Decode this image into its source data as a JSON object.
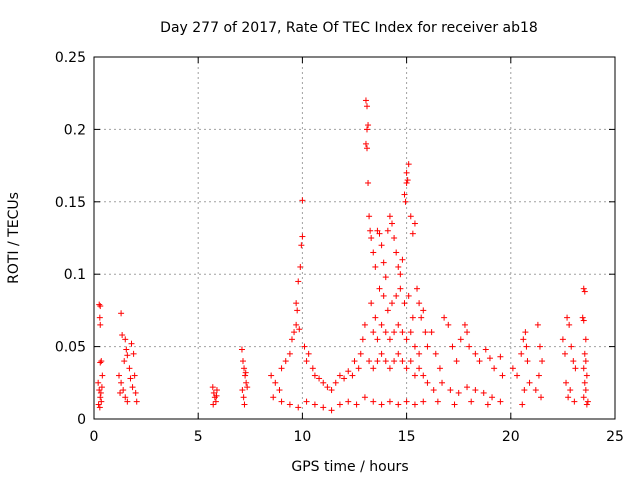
{
  "chart_data": {
    "type": "scatter",
    "title": "Day 277 of 2017, Rate Of TEC Index for receiver ab18",
    "xlabel": "GPS time / hours",
    "ylabel": "ROTI / TECUs",
    "xlim": [
      0,
      25
    ],
    "ylim": [
      0,
      0.25
    ],
    "x_ticks": [
      0,
      5,
      10,
      15,
      20,
      25
    ],
    "x_tick_labels": [
      "0",
      "5",
      "10",
      "15",
      "20",
      "25"
    ],
    "y_ticks": [
      0,
      0.05,
      0.1,
      0.15,
      0.2,
      0.25
    ],
    "y_tick_labels": [
      "0",
      "0.05",
      "0.1",
      "0.15",
      "0.2",
      "0.25"
    ],
    "grid": true,
    "marker": "+",
    "marker_color": "#ff0000",
    "series": [
      {
        "points": [
          [
            0.25,
            0.079
          ],
          [
            0.3,
            0.078
          ],
          [
            0.28,
            0.07
          ],
          [
            0.3,
            0.065
          ],
          [
            0.35,
            0.04
          ],
          [
            0.3,
            0.039
          ],
          [
            0.2,
            0.025
          ],
          [
            0.25,
            0.02
          ],
          [
            0.3,
            0.015
          ],
          [
            0.35,
            0.012
          ],
          [
            0.22,
            0.01
          ],
          [
            0.4,
            0.03
          ],
          [
            0.28,
            0.008
          ],
          [
            0.33,
            0.018
          ],
          [
            0.38,
            0.022
          ],
          [
            1.3,
            0.073
          ],
          [
            1.35,
            0.058
          ],
          [
            1.5,
            0.055
          ],
          [
            1.55,
            0.048
          ],
          [
            1.6,
            0.044
          ],
          [
            1.45,
            0.04
          ],
          [
            1.7,
            0.035
          ],
          [
            1.8,
            0.052
          ],
          [
            1.9,
            0.045
          ],
          [
            1.2,
            0.03
          ],
          [
            1.3,
            0.025
          ],
          [
            1.4,
            0.02
          ],
          [
            1.5,
            0.015
          ],
          [
            1.6,
            0.012
          ],
          [
            1.75,
            0.028
          ],
          [
            1.85,
            0.022
          ],
          [
            2.0,
            0.018
          ],
          [
            2.05,
            0.012
          ],
          [
            1.25,
            0.018
          ],
          [
            1.95,
            0.03
          ],
          [
            5.7,
            0.022
          ],
          [
            5.75,
            0.018
          ],
          [
            5.8,
            0.015
          ],
          [
            5.85,
            0.012
          ],
          [
            5.9,
            0.02
          ],
          [
            5.72,
            0.01
          ],
          [
            5.88,
            0.016
          ],
          [
            7.1,
            0.048
          ],
          [
            7.15,
            0.04
          ],
          [
            7.2,
            0.035
          ],
          [
            7.25,
            0.03
          ],
          [
            7.3,
            0.025
          ],
          [
            7.12,
            0.02
          ],
          [
            7.18,
            0.015
          ],
          [
            7.22,
            0.01
          ],
          [
            7.28,
            0.032
          ],
          [
            7.35,
            0.022
          ],
          [
            8.5,
            0.03
          ],
          [
            8.7,
            0.025
          ],
          [
            8.9,
            0.02
          ],
          [
            9.0,
            0.035
          ],
          [
            9.2,
            0.04
          ],
          [
            9.4,
            0.045
          ],
          [
            9.5,
            0.055
          ],
          [
            9.6,
            0.06
          ],
          [
            9.7,
            0.065
          ],
          [
            9.75,
            0.075
          ],
          [
            9.7,
            0.08
          ],
          [
            9.8,
            0.095
          ],
          [
            9.9,
            0.105
          ],
          [
            9.95,
            0.12
          ],
          [
            10.0,
            0.126
          ],
          [
            10.0,
            0.151
          ],
          [
            9.85,
            0.062
          ],
          [
            10.1,
            0.05
          ],
          [
            10.2,
            0.04
          ],
          [
            10.3,
            0.045
          ],
          [
            10.5,
            0.035
          ],
          [
            10.6,
            0.03
          ],
          [
            10.8,
            0.028
          ],
          [
            11.0,
            0.025
          ],
          [
            11.2,
            0.022
          ],
          [
            11.4,
            0.02
          ],
          [
            11.6,
            0.025
          ],
          [
            11.8,
            0.03
          ],
          [
            12.0,
            0.028
          ],
          [
            12.2,
            0.033
          ],
          [
            12.4,
            0.03
          ],
          [
            12.5,
            0.04
          ],
          [
            12.7,
            0.035
          ],
          [
            12.8,
            0.045
          ],
          [
            12.9,
            0.055
          ],
          [
            13.0,
            0.065
          ],
          [
            13.05,
            0.22
          ],
          [
            13.1,
            0.216
          ],
          [
            13.15,
            0.203
          ],
          [
            13.1,
            0.2
          ],
          [
            13.05,
            0.19
          ],
          [
            13.1,
            0.187
          ],
          [
            13.15,
            0.163
          ],
          [
            13.2,
            0.14
          ],
          [
            13.25,
            0.13
          ],
          [
            13.3,
            0.125
          ],
          [
            13.4,
            0.115
          ],
          [
            13.5,
            0.105
          ],
          [
            13.6,
            0.13
          ],
          [
            13.7,
            0.128
          ],
          [
            13.8,
            0.12
          ],
          [
            13.9,
            0.108
          ],
          [
            14.0,
            0.098
          ],
          [
            14.1,
            0.13
          ],
          [
            14.2,
            0.14
          ],
          [
            14.3,
            0.135
          ],
          [
            14.4,
            0.125
          ],
          [
            14.5,
            0.115
          ],
          [
            14.6,
            0.105
          ],
          [
            14.7,
            0.1
          ],
          [
            14.8,
            0.11
          ],
          [
            14.9,
            0.155
          ],
          [
            15.0,
            0.163
          ],
          [
            15.05,
            0.165
          ],
          [
            15.1,
            0.176
          ],
          [
            15.0,
            0.17
          ],
          [
            14.95,
            0.15
          ],
          [
            15.2,
            0.14
          ],
          [
            15.3,
            0.128
          ],
          [
            15.4,
            0.135
          ],
          [
            15.5,
            0.09
          ],
          [
            15.6,
            0.08
          ],
          [
            15.7,
            0.07
          ],
          [
            15.8,
            0.075
          ],
          [
            15.9,
            0.06
          ],
          [
            16.0,
            0.05
          ],
          [
            13.3,
            0.08
          ],
          [
            13.5,
            0.07
          ],
          [
            13.7,
            0.09
          ],
          [
            13.9,
            0.085
          ],
          [
            14.1,
            0.075
          ],
          [
            14.3,
            0.08
          ],
          [
            14.5,
            0.085
          ],
          [
            14.7,
            0.09
          ],
          [
            14.9,
            0.08
          ],
          [
            15.1,
            0.085
          ],
          [
            15.3,
            0.07
          ],
          [
            13.4,
            0.06
          ],
          [
            13.6,
            0.055
          ],
          [
            13.8,
            0.065
          ],
          [
            14.0,
            0.06
          ],
          [
            14.2,
            0.055
          ],
          [
            14.4,
            0.06
          ],
          [
            14.6,
            0.065
          ],
          [
            14.8,
            0.06
          ],
          [
            15.0,
            0.055
          ],
          [
            15.2,
            0.06
          ],
          [
            15.4,
            0.05
          ],
          [
            15.6,
            0.045
          ],
          [
            13.2,
            0.04
          ],
          [
            13.4,
            0.035
          ],
          [
            13.6,
            0.04
          ],
          [
            13.8,
            0.045
          ],
          [
            14.0,
            0.04
          ],
          [
            14.2,
            0.035
          ],
          [
            14.4,
            0.04
          ],
          [
            14.6,
            0.045
          ],
          [
            14.8,
            0.04
          ],
          [
            15.0,
            0.035
          ],
          [
            15.2,
            0.04
          ],
          [
            15.4,
            0.03
          ],
          [
            15.6,
            0.035
          ],
          [
            15.8,
            0.03
          ],
          [
            16.0,
            0.025
          ],
          [
            8.6,
            0.015
          ],
          [
            9.0,
            0.012
          ],
          [
            9.4,
            0.01
          ],
          [
            9.8,
            0.008
          ],
          [
            10.2,
            0.012
          ],
          [
            10.6,
            0.01
          ],
          [
            11.0,
            0.008
          ],
          [
            11.4,
            0.006
          ],
          [
            11.8,
            0.01
          ],
          [
            12.2,
            0.012
          ],
          [
            12.6,
            0.01
          ],
          [
            13.0,
            0.015
          ],
          [
            13.4,
            0.012
          ],
          [
            13.8,
            0.01
          ],
          [
            14.2,
            0.012
          ],
          [
            14.6,
            0.01
          ],
          [
            15.0,
            0.012
          ],
          [
            15.4,
            0.01
          ],
          [
            15.8,
            0.012
          ],
          [
            16.2,
            0.06
          ],
          [
            16.4,
            0.045
          ],
          [
            16.6,
            0.035
          ],
          [
            16.8,
            0.07
          ],
          [
            17.0,
            0.065
          ],
          [
            17.2,
            0.05
          ],
          [
            17.4,
            0.04
          ],
          [
            17.6,
            0.055
          ],
          [
            17.8,
            0.065
          ],
          [
            17.9,
            0.06
          ],
          [
            18.0,
            0.05
          ],
          [
            18.3,
            0.045
          ],
          [
            18.5,
            0.04
          ],
          [
            18.8,
            0.048
          ],
          [
            19.0,
            0.042
          ],
          [
            19.2,
            0.035
          ],
          [
            19.5,
            0.043
          ],
          [
            19.6,
            0.03
          ],
          [
            16.3,
            0.02
          ],
          [
            16.7,
            0.025
          ],
          [
            17.1,
            0.02
          ],
          [
            17.5,
            0.018
          ],
          [
            17.9,
            0.022
          ],
          [
            18.3,
            0.02
          ],
          [
            18.7,
            0.018
          ],
          [
            19.1,
            0.015
          ],
          [
            19.5,
            0.012
          ],
          [
            16.5,
            0.012
          ],
          [
            17.3,
            0.01
          ],
          [
            18.1,
            0.012
          ],
          [
            18.9,
            0.01
          ],
          [
            20.1,
            0.035
          ],
          [
            20.3,
            0.03
          ],
          [
            20.5,
            0.045
          ],
          [
            20.6,
            0.055
          ],
          [
            20.7,
            0.06
          ],
          [
            20.75,
            0.05
          ],
          [
            20.8,
            0.04
          ],
          [
            20.65,
            0.02
          ],
          [
            20.55,
            0.01
          ],
          [
            20.9,
            0.025
          ],
          [
            21.3,
            0.065
          ],
          [
            21.4,
            0.05
          ],
          [
            21.5,
            0.04
          ],
          [
            21.2,
            0.02
          ],
          [
            21.35,
            0.03
          ],
          [
            21.45,
            0.015
          ],
          [
            22.5,
            0.055
          ],
          [
            22.6,
            0.045
          ],
          [
            22.7,
            0.07
          ],
          [
            22.8,
            0.065
          ],
          [
            22.9,
            0.05
          ],
          [
            23.0,
            0.04
          ],
          [
            23.1,
            0.035
          ],
          [
            22.65,
            0.025
          ],
          [
            22.75,
            0.015
          ],
          [
            22.85,
            0.02
          ],
          [
            23.05,
            0.012
          ],
          [
            23.5,
            0.09
          ],
          [
            23.55,
            0.088
          ],
          [
            23.45,
            0.07
          ],
          [
            23.5,
            0.068
          ],
          [
            23.6,
            0.055
          ],
          [
            23.55,
            0.045
          ],
          [
            23.6,
            0.04
          ],
          [
            23.5,
            0.035
          ],
          [
            23.65,
            0.03
          ],
          [
            23.55,
            0.025
          ],
          [
            23.6,
            0.02
          ],
          [
            23.5,
            0.015
          ],
          [
            23.65,
            0.01
          ],
          [
            23.7,
            0.012
          ]
        ]
      }
    ]
  }
}
